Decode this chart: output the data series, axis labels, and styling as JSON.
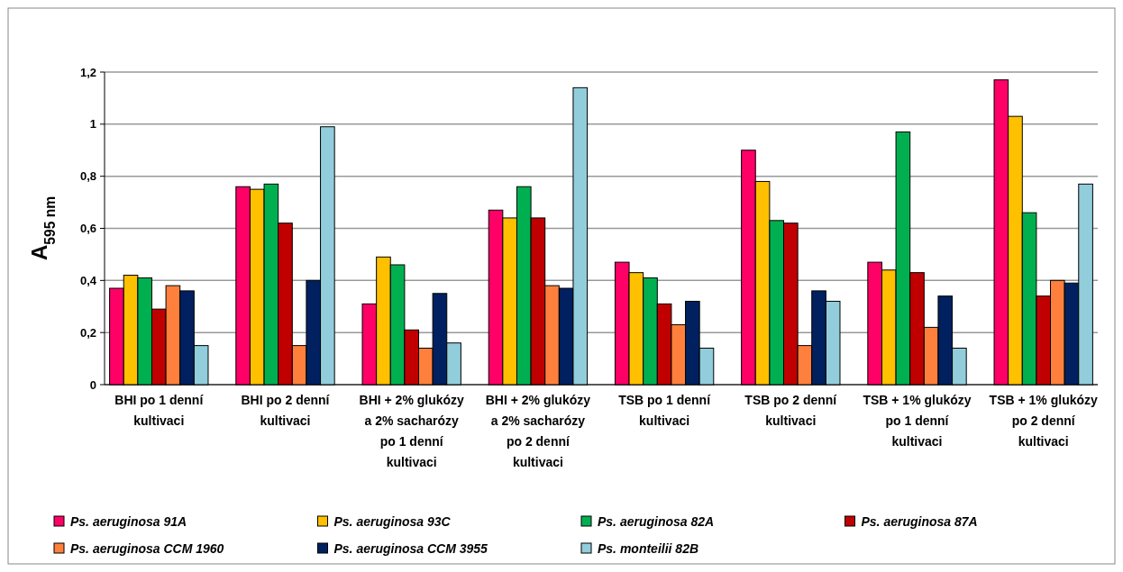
{
  "chart_data": {
    "type": "bar",
    "ylabel": "A$_{595 nm}$",
    "categories": [
      "BHI po 1 denní kultivaci",
      "BHI po 2 denní kultivaci",
      "BHI + 2% glukózy a 2% sacharózy po 1 denní kultivaci",
      "BHI + 2% glukózy a 2% sacharózy po 2 denní kultivaci",
      "TSB po 1 denní kultivaci",
      "TSB po 2 denní kultivaci",
      "TSB + 1% glukózy po 1 denní kultivaci",
      "TSB + 1% glukózy po 2 denní kultivaci"
    ],
    "series": [
      {
        "name": "Ps. aeruginosa 91A",
        "color": "#ff0066",
        "values": [
          0.37,
          0.76,
          0.31,
          0.67,
          0.47,
          0.9,
          0.47,
          1.17
        ]
      },
      {
        "name": "Ps. aeruginosa 93C",
        "color": "#ffc000",
        "values": [
          0.42,
          0.75,
          0.49,
          0.64,
          0.43,
          0.78,
          0.44,
          1.03
        ]
      },
      {
        "name": "Ps. aeruginosa 82A",
        "color": "#00b050",
        "values": [
          0.41,
          0.77,
          0.46,
          0.76,
          0.41,
          0.63,
          0.97,
          0.66
        ]
      },
      {
        "name": "Ps. aeruginosa 87A",
        "color": "#c00000",
        "values": [
          0.29,
          0.62,
          0.21,
          0.64,
          0.31,
          0.62,
          0.43,
          0.34
        ]
      },
      {
        "name": "Ps. aeruginosa CCM 1960",
        "color": "#ff803c",
        "values": [
          0.38,
          0.15,
          0.14,
          0.38,
          0.23,
          0.15,
          0.22,
          0.4
        ]
      },
      {
        "name": "Ps. aeruginosa CCM 3955",
        "color": "#002060",
        "values": [
          0.36,
          0.4,
          0.35,
          0.37,
          0.32,
          0.36,
          0.34,
          0.39
        ]
      },
      {
        "name": "Ps. monteilii 82B",
        "color": "#92cddc",
        "values": [
          0.15,
          0.99,
          0.16,
          1.14,
          0.14,
          0.32,
          0.14,
          0.77
        ]
      }
    ],
    "ylim": [
      0,
      1.2
    ],
    "yticks": [
      0,
      {
        "value": 0.2,
        "label": "0,2"
      },
      {
        "value": 0.4,
        "label": "0,4"
      },
      {
        "value": 0.6,
        "label": "0,6"
      },
      {
        "value": 0.8,
        "label": "0,8"
      },
      1,
      {
        "value": 1.2,
        "label": "1,2"
      }
    ],
    "grid": "y",
    "legend": "bottom"
  }
}
